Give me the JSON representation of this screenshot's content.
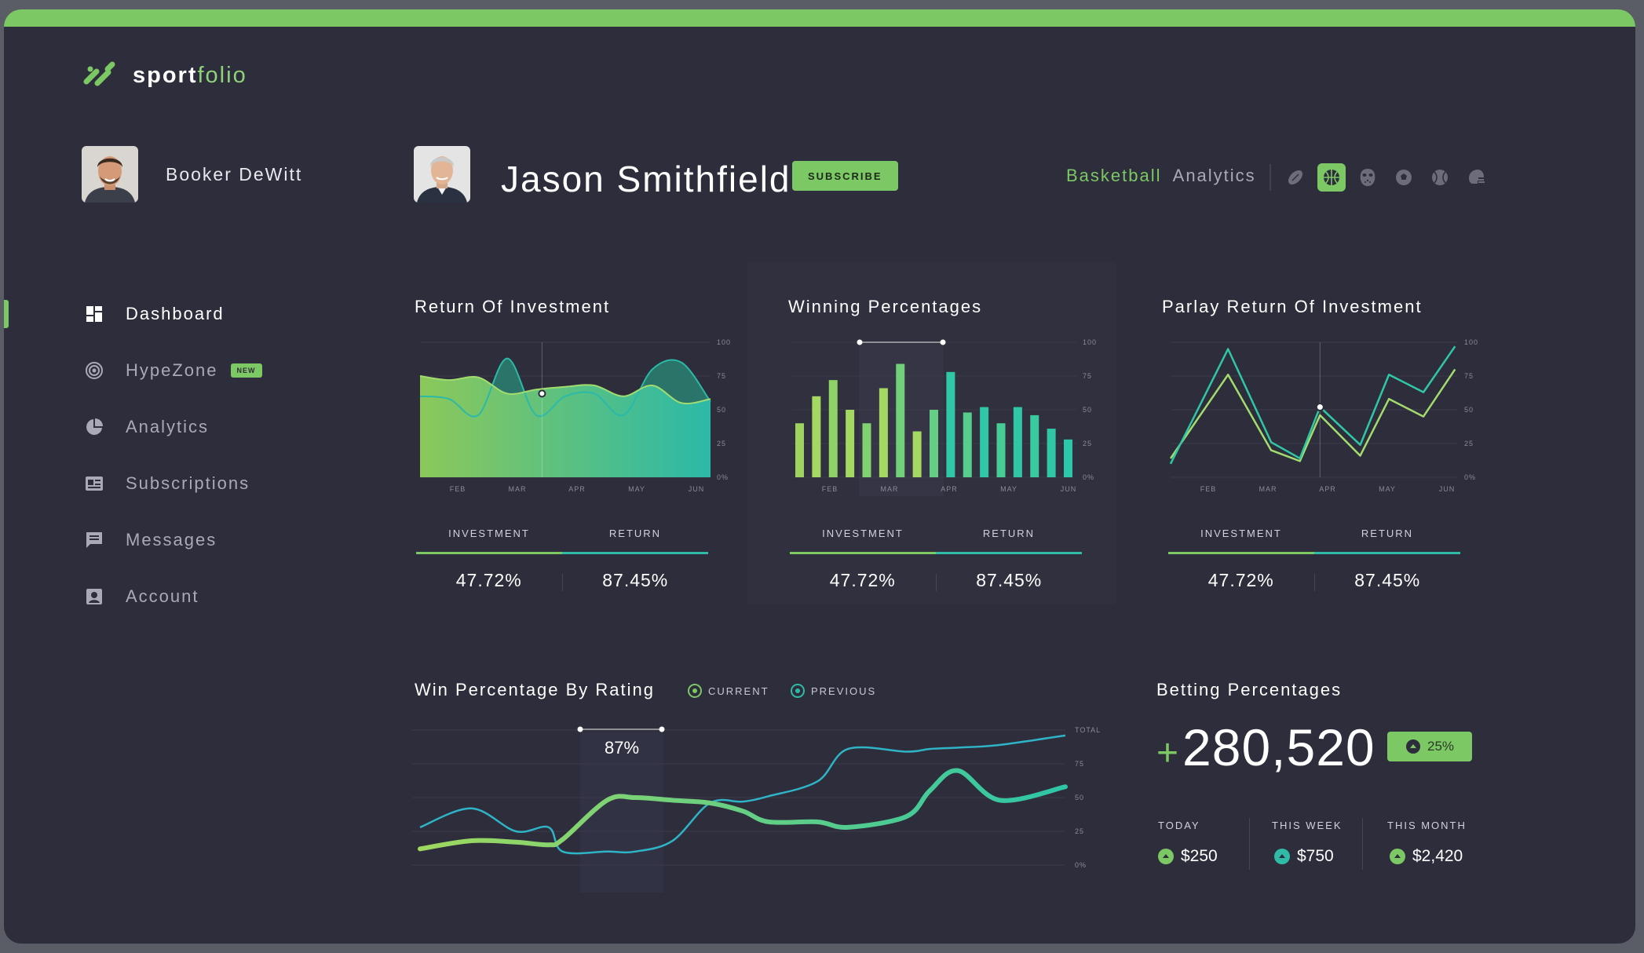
{
  "app": {
    "logo_bold": "sport",
    "logo_light": "folio"
  },
  "current_user": {
    "name": "Booker DeWitt"
  },
  "nav": {
    "items": [
      {
        "label": "Dashboard"
      },
      {
        "label": "HypeZone",
        "badge": "NEW"
      },
      {
        "label": "Analytics"
      },
      {
        "label": "Subscriptions"
      },
      {
        "label": "Messages"
      },
      {
        "label": "Account"
      }
    ]
  },
  "profile": {
    "name": "Jason Smithfield",
    "subscribe_label": "SUBSCRIBE"
  },
  "sport": {
    "name": "Basketball",
    "suffix": "Analytics",
    "icons": [
      "football-icon",
      "basketball-icon",
      "hockey-mask-icon",
      "soccer-icon",
      "baseball-icon",
      "helmet-icon"
    ],
    "active_index": 1
  },
  "colors": {
    "green": "#7cc865",
    "teal": "#2fbba7",
    "bg": "#2d2d3b"
  },
  "cards": [
    {
      "title": "Return Of Investment",
      "investment_label": "INVESTMENT",
      "return_label": "RETURN",
      "investment": "47.72%",
      "return": "87.45%"
    },
    {
      "title": "Winning Percentages",
      "investment_label": "INVESTMENT",
      "return_label": "RETURN",
      "investment": "47.72%",
      "return": "87.45%"
    },
    {
      "title": "Parlay Return Of Investment",
      "investment_label": "INVESTMENT",
      "return_label": "RETURN",
      "investment": "47.72%",
      "return": "87.45%"
    }
  ],
  "win_rating": {
    "title": "Win Percentage By Rating",
    "legend_current": "CURRENT",
    "legend_previous": "PREVIOUS",
    "tooltip": "87%"
  },
  "betting": {
    "title": "Betting Percentages",
    "plus": "+",
    "total": "280,520",
    "change": "25%",
    "periods": [
      {
        "label": "TODAY",
        "value": "$250"
      },
      {
        "label": "THIS WEEK",
        "value": "$750"
      },
      {
        "label": "THIS MONTH",
        "value": "$2,420"
      }
    ]
  },
  "chart_data": [
    {
      "type": "area",
      "months": [
        "FEB",
        "MAR",
        "APR",
        "MAY",
        "JUN"
      ],
      "y_ticks": [
        "100",
        "75",
        "50",
        "25",
        "0%"
      ],
      "ylim": [
        0,
        100
      ],
      "x": [
        0,
        0.5,
        1,
        1.5,
        2,
        2.5,
        3,
        3.5,
        4,
        4.5,
        5
      ],
      "series": [
        {
          "values": [
            75,
            72,
            74,
            62,
            65,
            67,
            68,
            60,
            68,
            55,
            58
          ]
        },
        {
          "values": [
            60,
            58,
            46,
            88,
            46,
            60,
            62,
            46,
            80,
            85,
            56
          ]
        }
      ]
    },
    {
      "type": "bar",
      "months": [
        "FEB",
        "MAR",
        "APR",
        "MAY",
        "JUN"
      ],
      "y_ticks": [
        "100",
        "75",
        "50",
        "25",
        "0%"
      ],
      "ylim": [
        0,
        100
      ],
      "values": [
        40,
        60,
        72,
        50,
        40,
        66,
        84,
        34,
        50,
        78,
        48,
        52,
        40,
        52,
        46,
        36,
        28
      ]
    },
    {
      "type": "line",
      "months": [
        "FEB",
        "MAR",
        "APR",
        "MAY",
        "JUN"
      ],
      "y_ticks": [
        "100",
        "75",
        "50",
        "25",
        "0%"
      ],
      "ylim": [
        0,
        100
      ],
      "x": [
        0,
        1,
        1.75,
        2.25,
        2.6,
        3.3,
        3.8,
        4.4,
        4.95
      ],
      "series": [
        {
          "values": [
            10,
            95,
            26,
            14,
            52,
            24,
            76,
            63,
            97
          ]
        },
        {
          "values": [
            14,
            76,
            20,
            12,
            46,
            16,
            58,
            45,
            80
          ]
        }
      ]
    },
    {
      "type": "line",
      "y_ticks": [
        "TOTAL",
        "75",
        "50",
        "25",
        "0%"
      ],
      "ylim": [
        0,
        100
      ],
      "x": [
        0,
        1.1,
        2.05,
        2.75,
        3.05,
        4,
        4.6,
        5.4,
        6.2,
        6.9,
        7.45,
        8.5,
        9.15,
        10.4,
        10.9,
        11.5,
        12.4,
        13.8
      ],
      "series": [
        {
          "values": [
            12,
            18,
            17,
            15,
            19,
            48,
            50,
            48,
            46,
            40,
            32,
            32,
            28,
            36,
            55,
            70,
            48,
            58
          ]
        },
        {
          "values": [
            28,
            42,
            25,
            28,
            10,
            10,
            10,
            18,
            46,
            47,
            51,
            62,
            86,
            84,
            86,
            87,
            89,
            96
          ]
        }
      ]
    }
  ]
}
